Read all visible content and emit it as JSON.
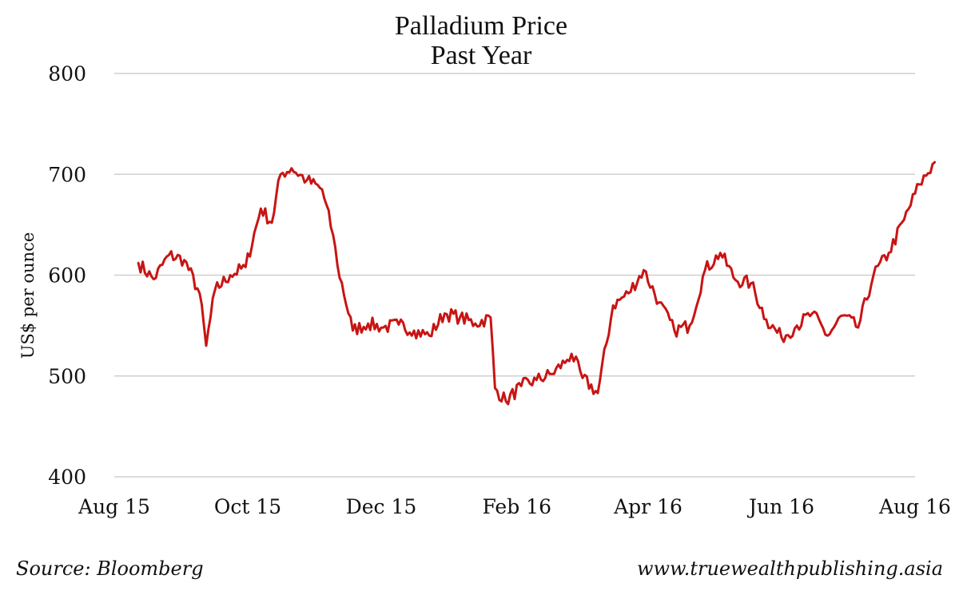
{
  "chart_data": {
    "type": "line",
    "title": [
      "Palladium Price",
      "Past Year"
    ],
    "ylabel": "US$ per ounce",
    "xlabel": "",
    "ylim": [
      400,
      800
    ],
    "yticks": [
      400,
      500,
      600,
      700,
      800
    ],
    "grid": true,
    "xticks": [
      "Aug 15",
      "Oct 15",
      "Dec 15",
      "Feb 16",
      "Apr 16",
      "Jun 16",
      "Aug 16"
    ],
    "series": [
      {
        "color": "#c81414",
        "x": [
          "2015-08-12",
          "2015-08-19",
          "2015-08-26",
          "2015-09-02",
          "2015-09-09",
          "2015-09-12",
          "2015-09-16",
          "2015-09-23",
          "2015-09-30",
          "2015-10-07",
          "2015-10-12",
          "2015-10-16",
          "2015-10-21",
          "2015-10-28",
          "2015-11-04",
          "2015-11-09",
          "2015-11-11",
          "2015-11-18",
          "2015-11-25",
          "2015-12-02",
          "2015-12-09",
          "2015-12-16",
          "2015-12-23",
          "2015-12-30",
          "2016-01-06",
          "2016-01-13",
          "2016-01-20",
          "2016-01-22",
          "2016-01-27",
          "2016-02-03",
          "2016-02-10",
          "2016-02-17",
          "2016-02-24",
          "2016-02-26",
          "2016-03-02",
          "2016-03-09",
          "2016-03-16",
          "2016-03-23",
          "2016-03-30",
          "2016-04-06",
          "2016-04-13",
          "2016-04-20",
          "2016-04-27",
          "2016-05-04",
          "2016-05-11",
          "2016-05-18",
          "2016-05-25",
          "2016-06-01",
          "2016-06-08",
          "2016-06-15",
          "2016-06-22",
          "2016-06-29",
          "2016-07-06",
          "2016-07-13",
          "2016-07-20",
          "2016-07-27",
          "2016-08-03",
          "2016-08-10"
        ],
        "values": [
          612,
          596,
          620,
          615,
          582,
          530,
          585,
          600,
          608,
          666,
          652,
          700,
          706,
          694,
          685,
          640,
          610,
          545,
          552,
          548,
          551,
          545,
          540,
          562,
          558,
          552,
          558,
          488,
          475,
          490,
          496,
          502,
          516,
          522,
          498,
          483,
          570,
          582,
          605,
          573,
          545,
          550,
          605,
          622,
          595,
          592,
          556,
          538,
          550,
          562,
          540,
          560,
          548,
          600,
          622,
          655,
          690,
          712
        ]
      }
    ]
  },
  "footer": {
    "source": "Source: Bloomberg",
    "website": "www.truewealthpublishing.asia"
  }
}
